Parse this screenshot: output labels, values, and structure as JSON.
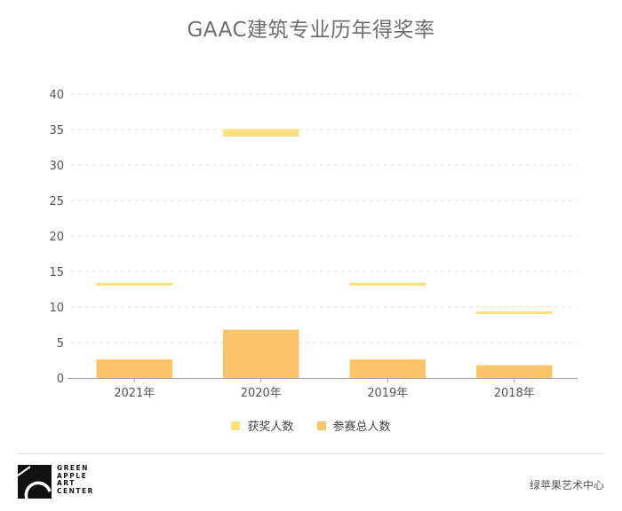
{
  "chart_data": {
    "type": "bar",
    "title": "GAAC建筑专业历年得奖率",
    "categories": [
      "2021年",
      "2020年",
      "2019年",
      "2018年"
    ],
    "series": [
      {
        "name": "获奖人数",
        "values": [
          13,
          34,
          13,
          9
        ],
        "color": "#FBE07E"
      },
      {
        "name": "参赛总人数",
        "values": [
          2.6,
          6.8,
          2.6,
          1.8
        ],
        "color": "#FDC46A"
      }
    ],
    "ylim": [
      0,
      40
    ],
    "yticks": [
      0,
      5,
      10,
      15,
      20,
      25,
      30,
      35,
      40
    ],
    "grid": true,
    "legend_position": "bottom-center"
  },
  "footer": {
    "logo_text": [
      "GREEN",
      "APPLE",
      "ART",
      "CENTER"
    ],
    "org_name": "绿苹果艺术中心"
  }
}
